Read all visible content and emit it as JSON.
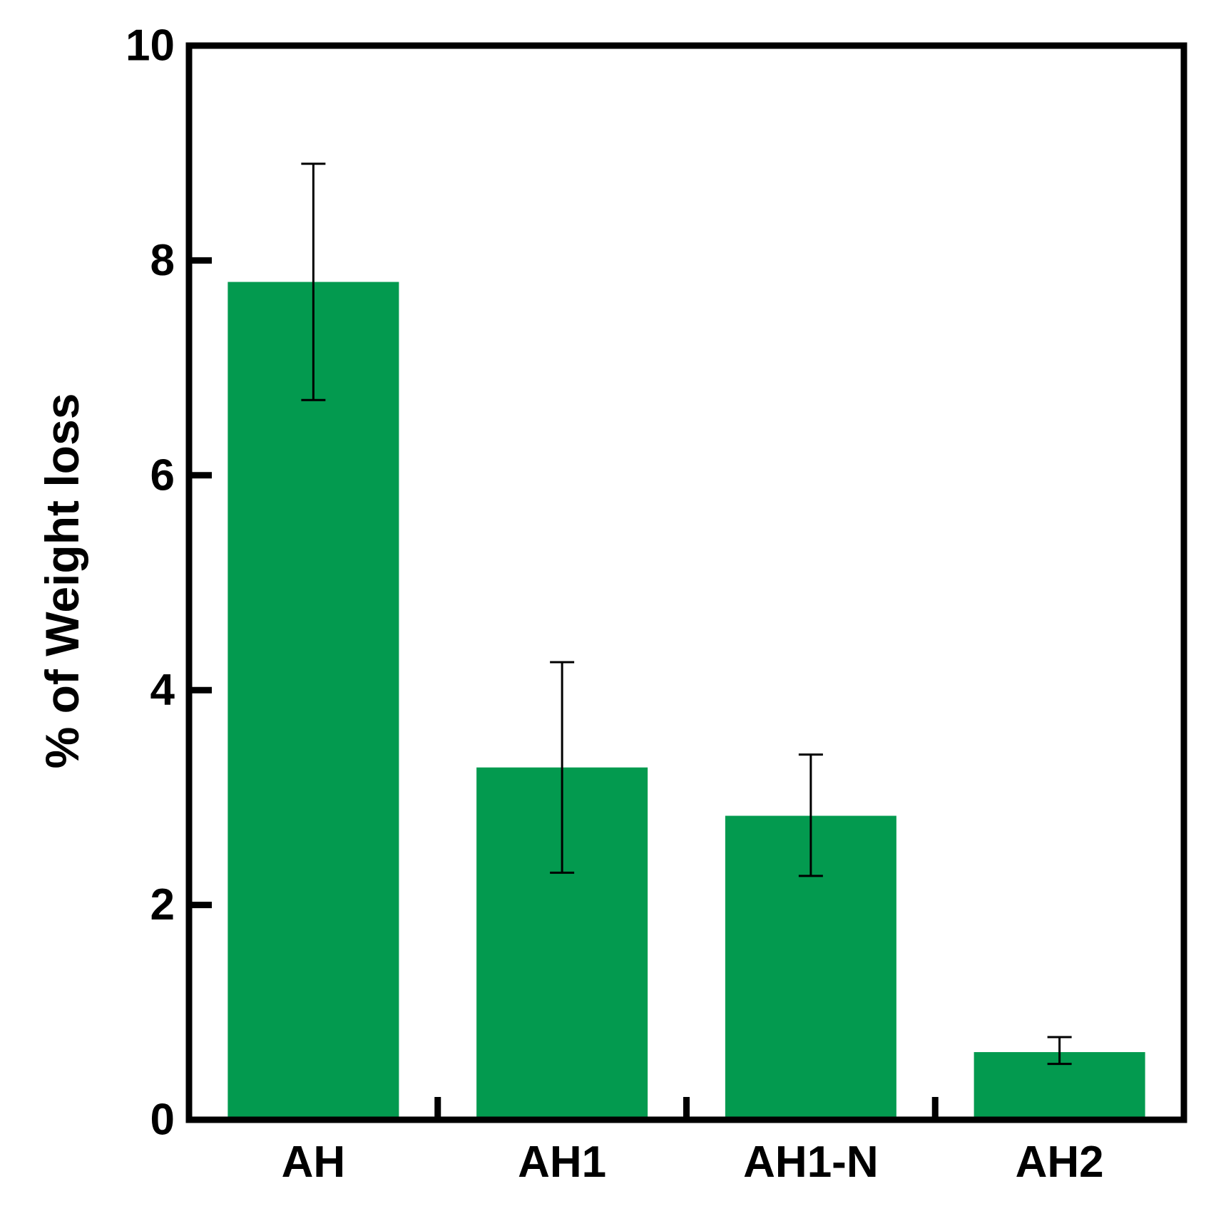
{
  "chart_data": {
    "type": "bar",
    "title": "",
    "xlabel": "",
    "ylabel": "% of Weight loss",
    "categories": [
      "AH",
      "AH1",
      "AH1-N",
      "AH2"
    ],
    "values": [
      7.8,
      3.28,
      2.83,
      0.63
    ],
    "error_upper": [
      8.9,
      4.26,
      3.4,
      0.77
    ],
    "error_lower": [
      6.7,
      2.3,
      2.27,
      0.52
    ],
    "ylim": [
      0,
      10
    ],
    "yticks": [
      0,
      2,
      4,
      6,
      8,
      10
    ],
    "ytick_labels": [
      "0",
      "2",
      "4",
      "6",
      "8",
      "10"
    ],
    "grid": false,
    "legend": "none",
    "colors": {
      "bar": "#039a4f",
      "axis": "#000000",
      "error_bar": "#000000"
    }
  }
}
